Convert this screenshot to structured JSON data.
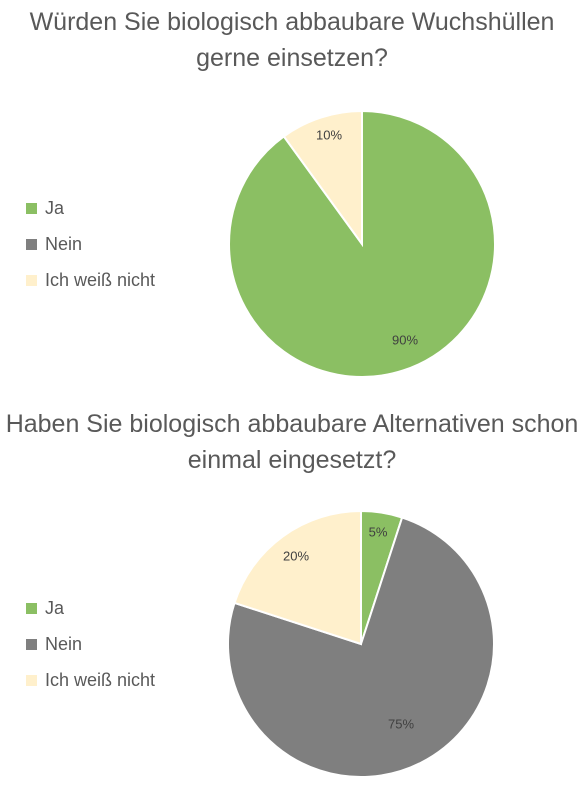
{
  "colors": {
    "ja": "#8bbf63",
    "nein": "#7f7f7f",
    "ich_weiss_nicht": "#fff0cc"
  },
  "chart_data": [
    {
      "type": "pie",
      "title": "Würden Sie biologisch abbaubare Wuchshüllen gerne einsetzen?",
      "title_lines": [
        "Würden Sie biologisch abbaubare Wuchshüllen",
        "gerne einsetzen?"
      ],
      "legend_placement": "left",
      "categories": [
        "Ja",
        "Nein",
        "Ich weiß nicht"
      ],
      "values": [
        90,
        0,
        10
      ],
      "labels": [
        "90%",
        "",
        "10%"
      ]
    },
    {
      "type": "pie",
      "title": "Haben Sie biologisch abbaubare Alternativen schon einmal eingesetzt?",
      "title_lines": [
        "Haben Sie biologisch abbaubare Alternativen schon",
        "einmal eingesetzt?"
      ],
      "legend_placement": "left",
      "categories": [
        "Ja",
        "Nein",
        "Ich weiß nicht"
      ],
      "values": [
        5,
        75,
        20
      ],
      "labels": [
        "5%",
        "75%",
        "20%"
      ]
    }
  ]
}
